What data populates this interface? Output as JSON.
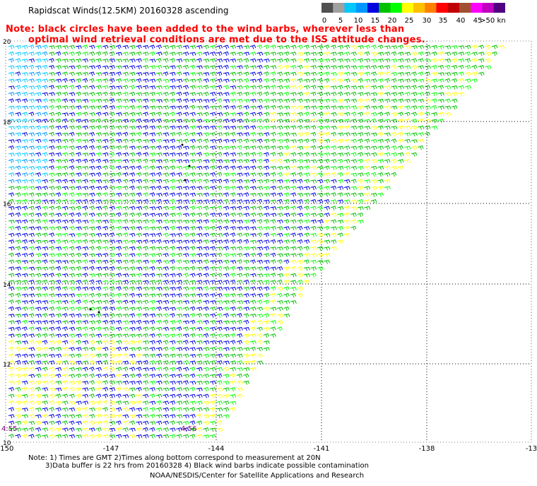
{
  "title": "Rapidscat Winds(12.5KM) 20160328 ascending",
  "notes": [
    "Note: black circles have been added to the wind barbs, wherever less than",
    "optimal wind retrieval conditions are met due to the ISS attitude changes."
  ],
  "colorbar": {
    "unit": "knots",
    "labels": [
      "0",
      "5",
      "10",
      "15",
      "20",
      "25",
      "30",
      "35",
      "40",
      "45",
      ">50 knots"
    ],
    "colors": [
      "#505050",
      "#a0a0a0",
      "#00c8ff",
      "#0096ff",
      "#0000e0",
      "#00c000",
      "#00ff00",
      "#ffff00",
      "#ffc000",
      "#ff8000",
      "#ff0000",
      "#c00000",
      "#a05030",
      "#ff00ff",
      "#c000c0",
      "#500080"
    ]
  },
  "axes": {
    "x_ticks": [
      "-150",
      "-147",
      "-144",
      "-141",
      "-138",
      "-13"
    ],
    "y_ticks": [
      "20",
      "18",
      "16",
      "14",
      "12",
      "10"
    ]
  },
  "time_labels": [
    "4:55",
    "4:56"
  ],
  "footer": {
    "line1": "Note: 1) Times are GMT 2)Times along bottom correspond to measurement at 20N",
    "line2": "3)Data buffer is 22 hrs from 20160328 4) Black wind barbs indicate possible contamination",
    "credit": "NOAA/NESDIS/Center for Satellite Applications and Research"
  }
}
